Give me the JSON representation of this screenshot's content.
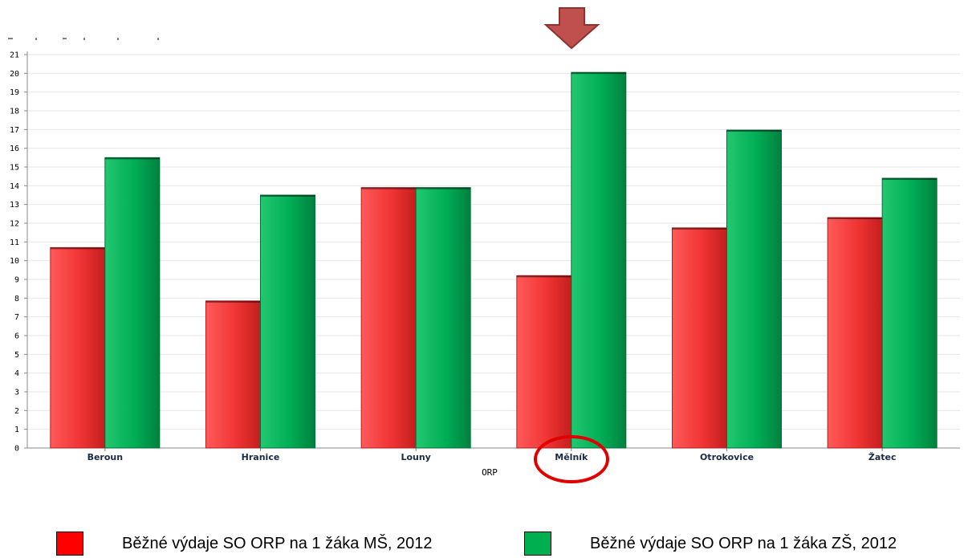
{
  "chart_data": {
    "type": "bar",
    "title": "",
    "xlabel": "ORP",
    "ylabel": "",
    "ylim": [
      0,
      21
    ],
    "yticks": [
      "0",
      "1",
      "2",
      "3",
      "4",
      "5",
      "6",
      "7",
      "8",
      "9",
      "10",
      "11",
      "12",
      "13",
      "14",
      "15",
      "16",
      "17",
      "18",
      "19",
      "20",
      "21"
    ],
    "grid": true,
    "categories": [
      "Beroun",
      "Hranice",
      "Louny",
      "Mělník",
      "Otrokovice",
      "Žatec"
    ],
    "series": [
      {
        "name": "Běžné výdaje SO ORP na 1 žáka MŠ, 2012",
        "color": "#ff0000",
        "values": [
          10.7,
          7.85,
          13.9,
          9.2,
          11.75,
          12.3
        ]
      },
      {
        "name": "Běžné výdaje SO ORP na 1 žáka ZŠ, 2012",
        "color": "#00b050",
        "values": [
          15.5,
          13.5,
          13.9,
          20.05,
          16.97,
          14.4
        ]
      }
    ],
    "annotations": [
      {
        "type": "arrow",
        "target": "Mělník",
        "color": "#c0504d"
      },
      {
        "type": "ellipse",
        "target": "Mělník",
        "color": "#e00000"
      }
    ]
  },
  "legend": {
    "ms_label": "Běžné výdaje SO ORP na 1 žáka MŠ, 2012",
    "zs_label": "Běžné výdaje SO ORP na 1 žáka ZŠ, 2012"
  }
}
